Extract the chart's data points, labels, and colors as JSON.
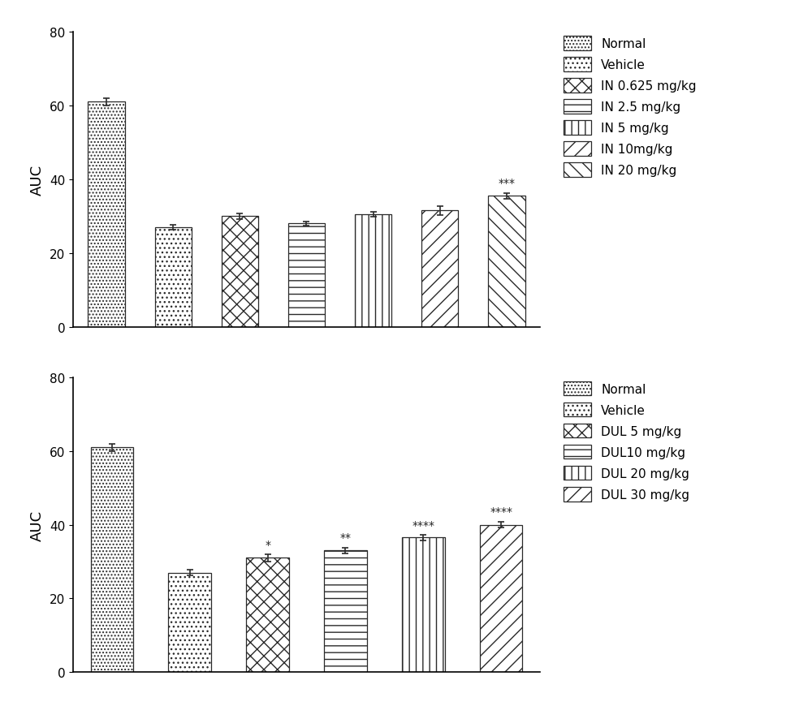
{
  "top_chart": {
    "values": [
      61.0,
      27.0,
      30.0,
      28.0,
      30.5,
      31.5,
      35.5
    ],
    "errors": [
      1.0,
      0.7,
      0.8,
      0.6,
      0.7,
      1.2,
      0.8
    ],
    "labels": [
      "Normal",
      "Vehicle",
      "IN 0.625 mg/kg",
      "IN 2.5 mg/kg",
      "IN 5 mg/kg",
      "IN 10mg/kg",
      "IN 20 mg/kg"
    ],
    "significance": [
      "",
      "",
      "",
      "",
      "",
      "",
      "***"
    ],
    "ylabel": "AUC",
    "ylim": [
      0,
      80
    ],
    "yticks": [
      0,
      20,
      40,
      60,
      80
    ]
  },
  "bottom_chart": {
    "values": [
      61.0,
      27.0,
      31.0,
      33.0,
      36.5,
      40.0
    ],
    "errors": [
      1.0,
      0.7,
      0.9,
      0.8,
      0.7,
      0.8
    ],
    "labels": [
      "Normal",
      "Vehicle",
      "DUL 5 mg/kg",
      "DUL10 mg/kg",
      "DUL 20 mg/kg",
      "DUL 30 mg/kg"
    ],
    "significance": [
      "",
      "",
      "*",
      "**",
      "****",
      "****"
    ],
    "ylabel": "AUC",
    "ylim": [
      0,
      80
    ],
    "yticks": [
      0,
      20,
      40,
      60,
      80
    ]
  },
  "bar_color": "#ffffff",
  "bar_edgecolor": "#2a2a2a",
  "errorbar_color": "#2a2a2a",
  "sig_fontsize": 10,
  "axis_fontsize": 13,
  "legend_fontsize": 11,
  "tick_fontsize": 11,
  "bar_width": 0.55,
  "figure_bg": "#ffffff"
}
